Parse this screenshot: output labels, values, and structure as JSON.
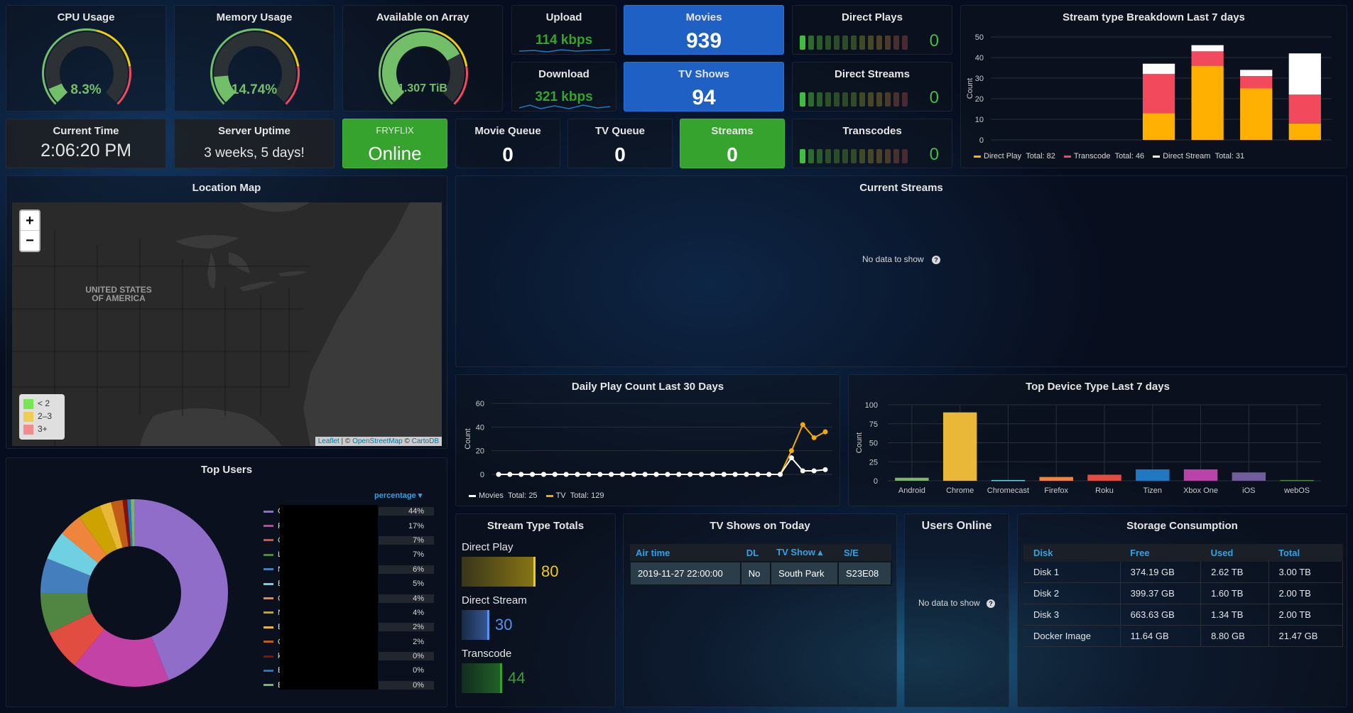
{
  "theme": {
    "green": "#37a32f",
    "green_value": "#73bf69",
    "blue": "#1f60c4",
    "yellow": "#f2cc0c",
    "orange": "#ff9830",
    "red": "#f2495c"
  },
  "gauges": [
    {
      "title": "CPU Usage",
      "value": "8.3%",
      "fraction": 0.083,
      "color": "#73bf69"
    },
    {
      "title": "Memory Usage",
      "value": "14.74%",
      "fraction": 0.1474,
      "color": "#73bf69"
    },
    {
      "title": "Available on Array",
      "value": "1.307 TiB",
      "fraction": 0.73,
      "color": "#73bf69"
    }
  ],
  "upload": {
    "title": "Upload",
    "value": "114 kbps"
  },
  "download": {
    "title": "Download",
    "value": "321 kbps"
  },
  "movies": {
    "title": "Movies",
    "value": "939"
  },
  "tvshows": {
    "title": "TV Shows",
    "value": "94"
  },
  "direct_plays": {
    "title": "Direct Plays",
    "value": "0"
  },
  "direct_streams": {
    "title": "Direct Streams",
    "value": "0"
  },
  "transcodes": {
    "title": "Transcodes",
    "value": "0"
  },
  "current_time": {
    "title": "Current Time",
    "value": "2:06:20 PM"
  },
  "server_uptime": {
    "title": "Server Uptime",
    "value": "3 weeks, 5 days!"
  },
  "fryflix": {
    "title": "FRYFLIX",
    "value": "Online"
  },
  "movie_queue": {
    "title": "Movie Queue",
    "value": "0"
  },
  "tv_queue": {
    "title": "TV Queue",
    "value": "0"
  },
  "streams": {
    "title": "Streams",
    "value": "0"
  },
  "stream_breakdown": {
    "title": "Stream type Breakdown Last 7 days",
    "legend": [
      {
        "name": "Direct Play",
        "total": "Total: 82",
        "color": "#ffb000"
      },
      {
        "name": "Transcode",
        "total": "Total: 46",
        "color": "#f2495c"
      },
      {
        "name": "Direct Stream",
        "total": "Total: 31",
        "color": "#ffffff"
      }
    ]
  },
  "location_map": {
    "title": "Location Map",
    "zoom_in": "+",
    "zoom_out": "−",
    "country_label_1": "UNITED STATES",
    "country_label_2": "OF AMERICA",
    "legend": [
      {
        "label": "< 2",
        "color": "#73e850"
      },
      {
        "label": "2–3",
        "color": "#f2cc52"
      },
      {
        "label": "3+",
        "color": "#f28c8c"
      }
    ],
    "attribution_leaflet": "Leaflet",
    "attribution_sep": " | © ",
    "attribution_osm": "OpenStreetMap",
    "attribution_sep2": " © ",
    "attribution_carto": "CartoDB"
  },
  "current_streams": {
    "title": "Current Streams",
    "empty": "No data to show"
  },
  "daily_play": {
    "title": "Daily Play Count Last 30 Days",
    "legend": [
      {
        "name": "Movies",
        "total": "Total: 25",
        "color": "#ffffff"
      },
      {
        "name": "TV",
        "total": "Total: 129",
        "color": "#f2a900"
      }
    ]
  },
  "top_device": {
    "title": "Top Device Type Last 7 days"
  },
  "top_users": {
    "title": "Top Users",
    "column_label": "percentage ▾",
    "rows": [
      {
        "name": "G",
        "pct": "44%",
        "value": 44,
        "color": "#8f6dc8"
      },
      {
        "name": "Fi",
        "pct": "17%",
        "value": 17,
        "color": "#c242a6"
      },
      {
        "name": "C",
        "pct": "7%",
        "value": 7,
        "color": "#e24d42"
      },
      {
        "name": "Lu",
        "pct": "7%",
        "value": 7,
        "color": "#508642"
      },
      {
        "name": "N",
        "pct": "6%",
        "value": 6,
        "color": "#447ebc"
      },
      {
        "name": "B",
        "pct": "5%",
        "value": 5,
        "color": "#6ed0e0"
      },
      {
        "name": "C",
        "pct": "4%",
        "value": 4,
        "color": "#ef843c"
      },
      {
        "name": "N",
        "pct": "4%",
        "value": 4,
        "color": "#cca300"
      },
      {
        "name": "B",
        "pct": "2%",
        "value": 2,
        "color": "#eab839"
      },
      {
        "name": "Q",
        "pct": "2%",
        "value": 2,
        "color": "#c15c17"
      },
      {
        "name": "ka",
        "pct": "0%",
        "value": 0.8,
        "color": "#890f02"
      },
      {
        "name": "E",
        "pct": "0%",
        "value": 0.6,
        "color": "#1f78c1"
      },
      {
        "name": "B",
        "pct": "0%",
        "value": 0.6,
        "color": "#7eb26d"
      }
    ]
  },
  "stream_totals": {
    "title": "Stream Type Totals",
    "items": [
      {
        "label": "Direct Play",
        "value": "80",
        "fraction": 0.8,
        "color": "#f2cc0c"
      },
      {
        "label": "Direct Stream",
        "value": "30",
        "fraction": 0.3,
        "color": "#5794f2"
      },
      {
        "label": "Transcode",
        "value": "44",
        "fraction": 0.44,
        "color": "#37a32f"
      }
    ]
  },
  "tv_today": {
    "title": "TV Shows on Today",
    "headers": [
      "Air time",
      "DL",
      "TV Show ▴",
      "S/E"
    ],
    "rows": [
      [
        "2019-11-27 22:00:00",
        "No",
        "South Park",
        "S23E08"
      ]
    ]
  },
  "users_online": {
    "title": "Users Online",
    "empty": "No data to show"
  },
  "storage": {
    "title": "Storage Consumption",
    "headers": [
      "Disk",
      "Free",
      "Used",
      "Total"
    ],
    "rows": [
      [
        "Disk 1",
        "374.19 GB",
        "2.62 TB",
        "3.00 TB"
      ],
      [
        "Disk 2",
        "399.37 GB",
        "1.60 TB",
        "2.00 TB"
      ],
      [
        "Disk 3",
        "663.63 GB",
        "1.34 TB",
        "2.00 TB"
      ],
      [
        "Docker Image",
        "11.64 GB",
        "8.80 GB",
        "21.47 GB"
      ]
    ]
  },
  "chart_data": [
    {
      "type": "bar",
      "title": "Stream type Breakdown Last 7 days",
      "ylabel": "Count",
      "xlabel": "",
      "ylim": [
        0,
        50
      ],
      "yticks": [
        0,
        10,
        20,
        30,
        40,
        50
      ],
      "stacked": true,
      "categories": [
        "",
        "",
        "",
        "",
        "",
        "",
        ""
      ],
      "series": [
        {
          "name": "Direct Play",
          "color": "#ffb000",
          "values": [
            0,
            0,
            0,
            13,
            36,
            25,
            8
          ]
        },
        {
          "name": "Transcode",
          "color": "#f2495c",
          "values": [
            0,
            0,
            0,
            19,
            7,
            6,
            14
          ]
        },
        {
          "name": "Direct Stream",
          "color": "#ffffff",
          "values": [
            0,
            0,
            0,
            5,
            3,
            3,
            20
          ]
        }
      ]
    },
    {
      "type": "line",
      "title": "Daily Play Count Last 30 Days",
      "ylabel": "Count",
      "ylim": [
        0,
        60
      ],
      "yticks": [
        0,
        20,
        40,
        60
      ],
      "series": [
        {
          "name": "TV",
          "color": "#f2a900",
          "values": [
            0,
            0,
            0,
            0,
            0,
            0,
            0,
            0,
            0,
            0,
            0,
            0,
            0,
            0,
            0,
            0,
            0,
            0,
            0,
            0,
            0,
            0,
            0,
            0,
            0,
            0,
            20,
            42,
            31,
            36
          ]
        },
        {
          "name": "Movies",
          "color": "#ffffff",
          "values": [
            0,
            0,
            0,
            0,
            0,
            0,
            0,
            0,
            0,
            0,
            0,
            0,
            0,
            0,
            0,
            0,
            0,
            0,
            0,
            0,
            0,
            0,
            0,
            0,
            0,
            0,
            14,
            3,
            3,
            4
          ]
        }
      ]
    },
    {
      "type": "bar",
      "title": "Top Device Type Last 7 days",
      "ylabel": "Count",
      "ylim": [
        0,
        100
      ],
      "yticks": [
        0,
        25,
        50,
        75,
        100
      ],
      "categories": [
        "Android",
        "Chrome",
        "Chromecast",
        "Firefox",
        "Roku",
        "Tizen",
        "Xbox One",
        "iOS",
        "webOS"
      ],
      "values": [
        4,
        90,
        1,
        5,
        8,
        15,
        15,
        11,
        1
      ],
      "colors": [
        "#7eb26d",
        "#eab839",
        "#6ed0e0",
        "#ef843c",
        "#e24d42",
        "#1f78c1",
        "#ba43a9",
        "#705da0",
        "#508642"
      ]
    },
    {
      "type": "pie",
      "title": "Top Users",
      "series": [
        {
          "name": "percentage",
          "values": [
            44,
            17,
            7,
            7,
            6,
            5,
            4,
            4,
            2,
            2,
            0.8,
            0.6,
            0.6
          ]
        }
      ]
    }
  ]
}
